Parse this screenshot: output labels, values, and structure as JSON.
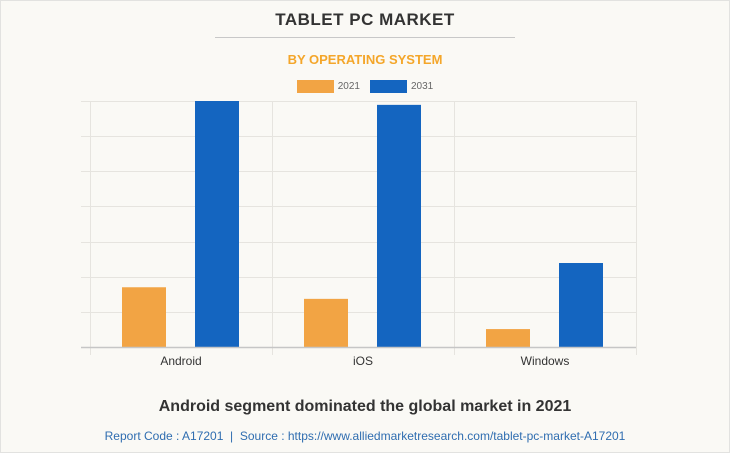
{
  "page": {
    "title": "TABLET PC MARKET",
    "subtitle": "BY OPERATING SYSTEM",
    "caption": "Android segment dominated the global market in 2021",
    "source_line": "Report Code : A17201  |  Source : https://www.alliedmarketresearch.com/tablet-pc-market-A17201"
  },
  "colors": {
    "series_2021": "#f2a444",
    "series_2031": "#1465c0",
    "subtitle": "#f4a62a",
    "source_link": "#2f6db0"
  },
  "chart_data": {
    "type": "bar",
    "title": "TABLET PC MARKET",
    "subtitle": "BY OPERATING SYSTEM",
    "xlabel": "",
    "ylabel": "",
    "categories": [
      "Android",
      "iOS",
      "Windows"
    ],
    "series": [
      {
        "name": "2021",
        "color": "#f2a444",
        "values": [
          1.7,
          1.37,
          0.51
        ]
      },
      {
        "name": "2031",
        "color": "#1465c0",
        "values": [
          7.0,
          6.89,
          2.39
        ]
      }
    ],
    "ylim": [
      0,
      7
    ],
    "y_gridlines": 7,
    "y_tick_labels_visible": false,
    "grid": true,
    "legend": {
      "placement": "top-center",
      "entries": [
        "2021",
        "2031"
      ]
    },
    "value_units": "relative (gridline intervals; no axis labels shown)"
  }
}
